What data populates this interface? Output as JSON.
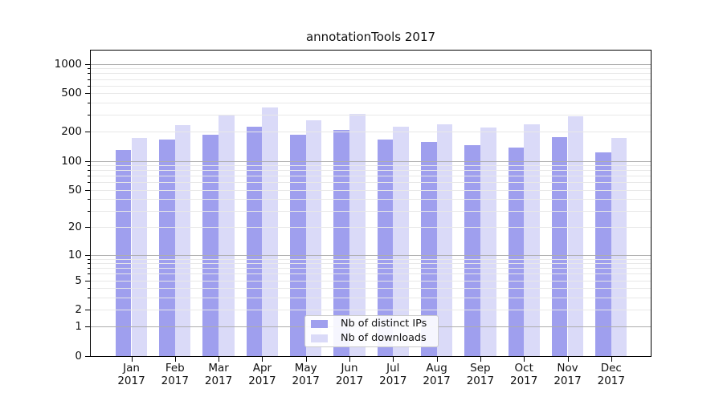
{
  "title": "annotationTools 2017",
  "chart_data": {
    "type": "bar",
    "title": "annotationTools 2017",
    "categories": [
      "Jan",
      "Feb",
      "Mar",
      "Apr",
      "May",
      "Jun",
      "Jul",
      "Aug",
      "Sep",
      "Oct",
      "Nov",
      "Dec"
    ],
    "category_year": "2017",
    "series": [
      {
        "name": "Nb of distinct IPs",
        "color": "#9f9fee",
        "values": [
          130,
          167,
          185,
          224,
          187,
          211,
          166,
          156,
          147,
          137,
          175,
          123
        ]
      },
      {
        "name": "Nb of downloads",
        "color": "#dadaf8",
        "values": [
          173,
          233,
          296,
          358,
          264,
          305,
          228,
          240,
          221,
          239,
          291,
          173
        ]
      }
    ],
    "xlabel": "",
    "ylabel": "",
    "y_scale": "log(1+x)",
    "y_ticks": [
      0,
      1,
      2,
      5,
      10,
      20,
      50,
      100,
      200,
      500,
      1000
    ],
    "ylim": [
      0,
      1375
    ],
    "grid": "horizontal",
    "legend_position": "lower center"
  },
  "legend": {
    "items": [
      {
        "label": "Nb of distinct IPs"
      },
      {
        "label": "Nb of downloads"
      }
    ]
  },
  "colors": {
    "bar_distinct_ips": "#9f9fee",
    "bar_downloads": "#dadaf8",
    "grid_minor": "#e8e8e8",
    "grid_major": "#adadad",
    "spine": "#000000",
    "text": "#111111",
    "legend_border": "#cbcbcb",
    "background": "#ffffff"
  }
}
